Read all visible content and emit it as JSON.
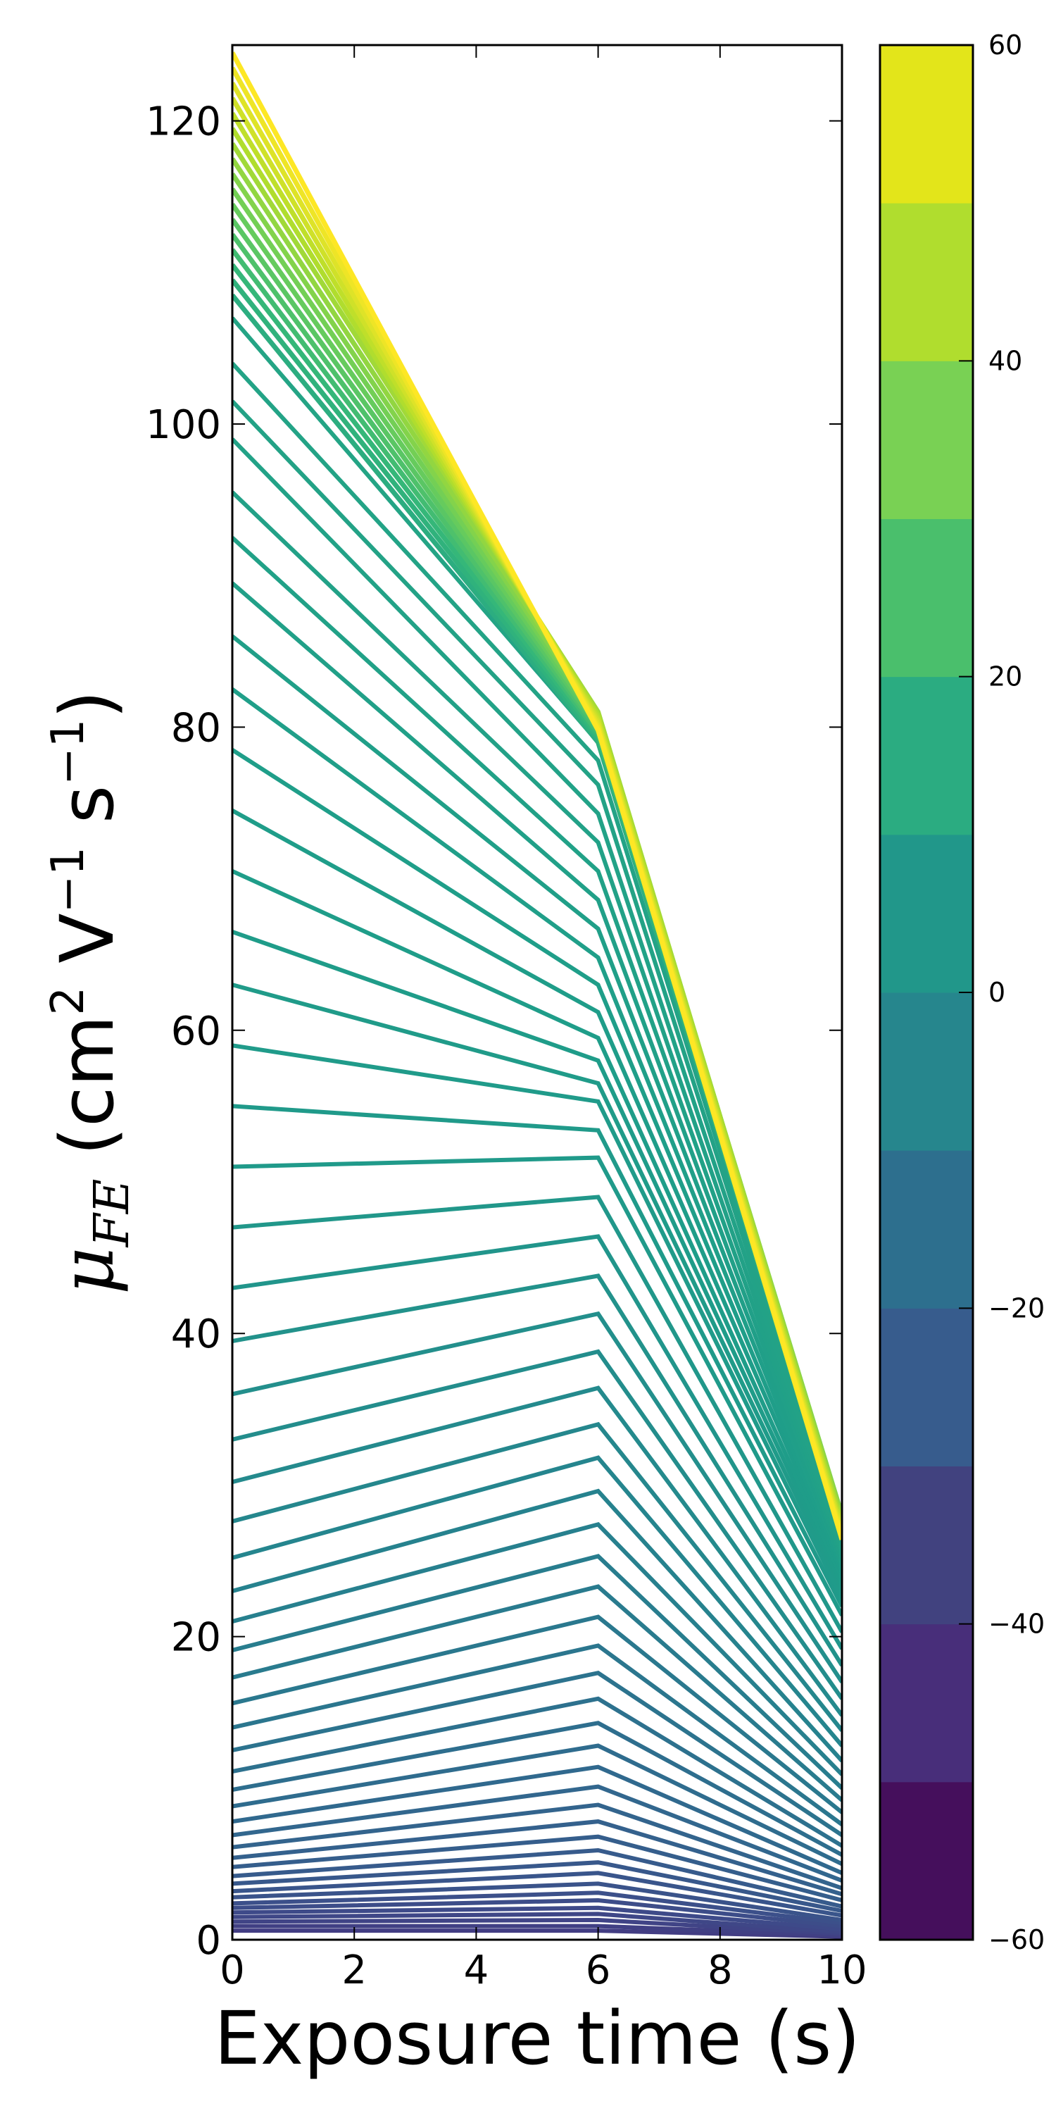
{
  "chart_data": {
    "type": "line",
    "xlabel": "Exposure time (s)",
    "ylabel_parts": {
      "symbol": "μ",
      "subscript": "FE",
      "open": " (cm",
      "sup1": "2",
      "mid1": " V",
      "sup2": "−1",
      "mid2": " s",
      "sup3": "−1",
      "close": ")"
    },
    "x": [
      0,
      6,
      10
    ],
    "xlim": [
      0,
      10
    ],
    "ylim": [
      0,
      125
    ],
    "xticks": [
      0,
      2,
      4,
      6,
      8,
      10
    ],
    "xtick_labels": [
      "0",
      "2",
      "4",
      "6",
      "8",
      "10"
    ],
    "yticks": [
      0,
      20,
      40,
      60,
      80,
      100,
      120
    ],
    "ytick_labels": [
      "0",
      "20",
      "40",
      "60",
      "80",
      "100",
      "120"
    ],
    "grid": false,
    "colorbar": {
      "range": [
        -60,
        60
      ],
      "levels": [
        -60,
        -50,
        -40,
        -30,
        -20,
        -10,
        0,
        10,
        20,
        30,
        40,
        50,
        60
      ],
      "colors": [
        "#440154",
        "#482878",
        "#3e4a89",
        "#31688e",
        "#26828e",
        "#1f9e89",
        "#35b779",
        "#6ece58",
        "#b5de2b",
        "#fde725",
        "#fde725",
        "#fde725"
      ],
      "band_colors": [
        "#450f5c",
        "#482e7a",
        "#41427f",
        "#375c8d",
        "#2d6f8e",
        "#26868d",
        "#21978a",
        "#2bac81",
        "#4abf6c",
        "#79d154",
        "#b0dd2e",
        "#e3e51a"
      ],
      "ticks": [
        -60,
        -40,
        -20,
        0,
        20,
        40,
        60
      ],
      "tick_labels": [
        "−60",
        "−40",
        "−20",
        "0",
        "20",
        "40",
        "60"
      ]
    },
    "series_note": "",
    "series_groups": {
      "lower": {
        "values_t0": [
          0.6,
          0.9,
          1.2,
          1.5,
          1.8,
          2.1,
          2.4,
          2.8,
          3.2,
          3.7,
          4.2,
          4.8,
          5.4,
          6.1,
          6.9,
          7.8,
          8.8,
          9.9,
          11.1,
          12.5,
          14.0,
          15.6,
          17.3,
          19.1,
          21.0,
          23.0,
          25.2,
          27.6,
          30.2,
          33.0,
          36.0,
          39.5,
          43.0,
          47.0,
          51.0
        ],
        "values_t6": [
          0.6,
          0.9,
          1.3,
          1.7,
          2.1,
          2.6,
          3.1,
          3.7,
          4.4,
          5.1,
          5.9,
          6.8,
          7.8,
          8.9,
          10.1,
          11.4,
          12.8,
          14.3,
          15.9,
          17.6,
          19.4,
          21.3,
          23.3,
          25.3,
          27.4,
          29.6,
          31.8,
          34.0,
          36.4,
          38.8,
          41.3,
          43.8,
          46.4,
          49.0,
          51.6
        ],
        "values_t10": [
          0.2,
          0.3,
          0.4,
          0.5,
          0.7,
          0.9,
          1.1,
          1.3,
          1.6,
          1.9,
          2.2,
          2.6,
          3.0,
          3.4,
          3.9,
          4.4,
          5.0,
          5.6,
          6.2,
          6.9,
          7.6,
          8.4,
          9.2,
          10.0,
          10.9,
          11.8,
          12.8,
          13.8,
          14.8,
          15.9,
          17.0,
          18.1,
          19.2,
          20.3,
          21.4
        ]
      },
      "upper": {
        "values_t0": [
          55.0,
          59.0,
          63.0,
          66.5,
          70.5,
          74.5,
          78.5,
          82.5,
          86.0,
          89.5,
          92.5,
          95.5,
          99.0,
          101.5,
          104.0,
          107.0
        ],
        "values_t6": [
          53.4,
          55.3,
          56.5,
          58.0,
          59.5,
          61.2,
          63.0,
          64.8,
          66.7,
          68.6,
          70.5,
          72.4,
          74.3,
          76.2,
          77.8,
          79.0
        ],
        "values_t10": [
          22.0,
          22.5,
          23.0,
          23.4,
          23.8,
          24.2,
          24.5,
          24.8,
          25.0,
          25.2,
          25.4,
          25.6,
          25.8,
          26.0,
          26.2,
          26.4
        ]
      },
      "top": {
        "values_t0": [
          108.5,
          109.5,
          110.5,
          111.5,
          112.5,
          113.5,
          114.5,
          115.5,
          116.5,
          117.5,
          118.5,
          119.5,
          120.5,
          121.5,
          122.5,
          123.5,
          124.5
        ],
        "values_t6": [
          79.0,
          79.2,
          79.4,
          79.6,
          79.8,
          80.0,
          80.2,
          80.4,
          80.6,
          80.8,
          81.0,
          80.8,
          80.6,
          80.4,
          80.2,
          80.0,
          79.8
        ],
        "values_t10": [
          26.5,
          26.7,
          26.9,
          27.1,
          27.3,
          27.5,
          27.7,
          27.9,
          28.0,
          27.8,
          27.6,
          27.4,
          27.2,
          27.0,
          26.8,
          26.6,
          26.4
        ]
      }
    }
  }
}
